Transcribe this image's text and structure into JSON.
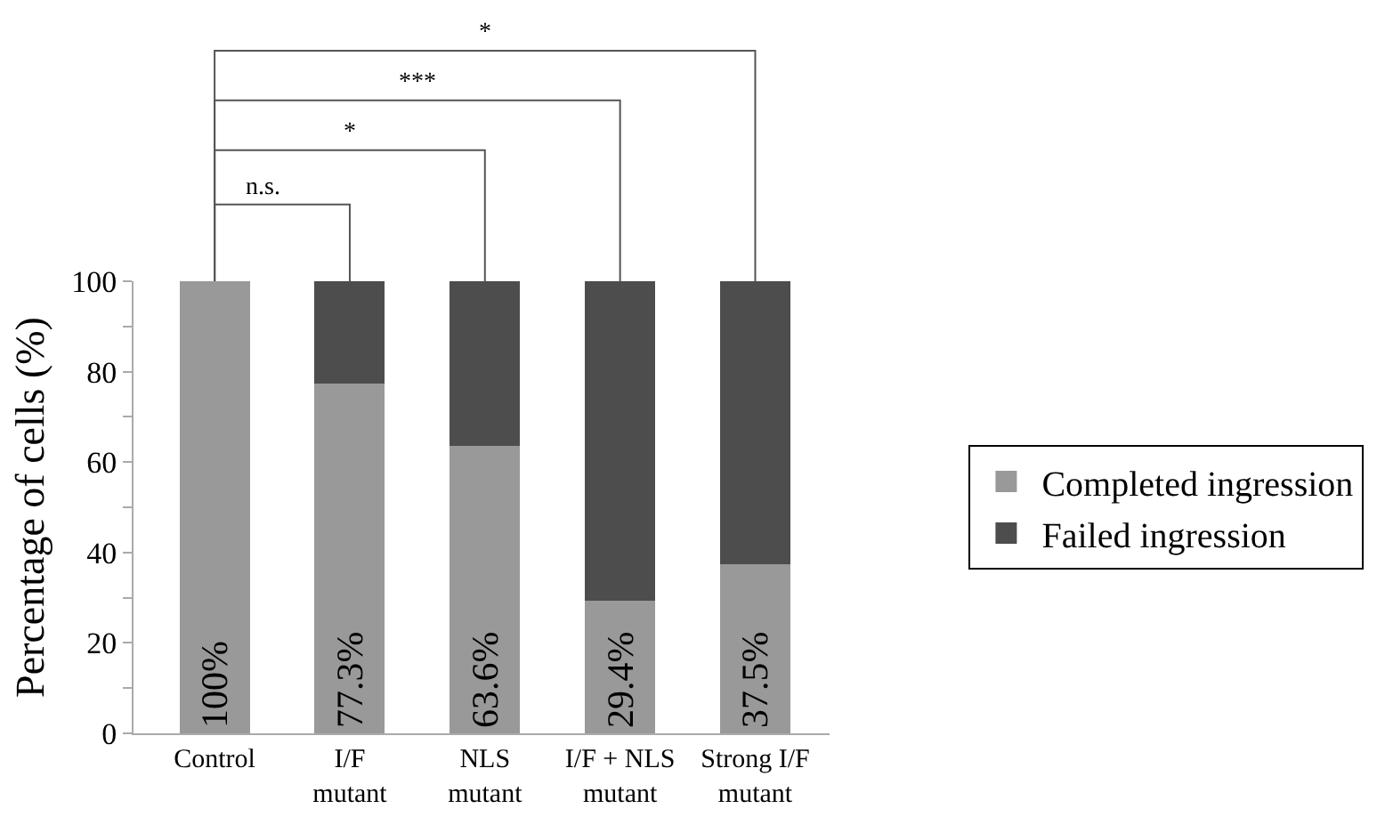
{
  "chart_data": {
    "type": "bar",
    "stacked": true,
    "categories": [
      "Control",
      "I/F\nmutant",
      "NLS\nmutant",
      "I/F + NLS\nmutant",
      "Strong I/F\nmutant"
    ],
    "series": [
      {
        "name": "Completed ingression",
        "color": "#999999",
        "values": [
          100,
          77.3,
          63.6,
          29.4,
          37.5
        ],
        "value_labels": [
          "100%",
          "77.3%",
          "63.6%",
          "29.4%",
          "37.5%"
        ]
      },
      {
        "name": "Failed ingression",
        "color": "#4d4d4d",
        "values": [
          0,
          22.7,
          36.4,
          70.6,
          62.5
        ]
      }
    ],
    "ylabel": "Percentage of cells (%)",
    "ylim": [
      0,
      100
    ],
    "yticks": [
      0,
      {
        "value": 10,
        "label": null
      },
      20,
      {
        "value": 30,
        "label": null
      },
      40,
      {
        "value": 50,
        "label": null
      },
      60,
      {
        "value": 70,
        "label": null
      },
      80,
      {
        "value": 90,
        "label": null
      },
      100
    ],
    "annotations": [
      "n.s.",
      "*",
      "***",
      "*"
    ],
    "legend": "right"
  }
}
